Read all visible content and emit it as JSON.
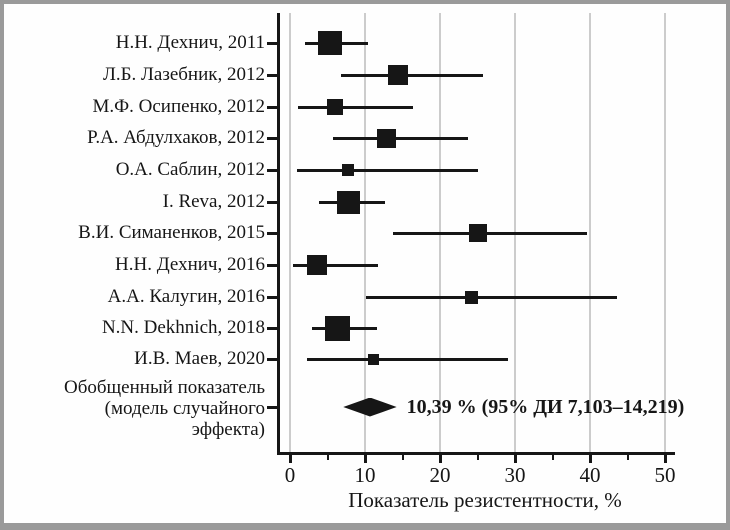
{
  "chart_data": {
    "type": "forest",
    "title": "",
    "xlabel": "Показатель резистентности, %",
    "xlim": [
      0,
      50
    ],
    "x_major_ticks": [
      0,
      10,
      20,
      30,
      40,
      50
    ],
    "x_minor_ticks": [
      5,
      15,
      25,
      35,
      45
    ],
    "grid": "vertical-at-major-ticks",
    "legend": "none",
    "studies": [
      {
        "label": "Н.Н. Дехнич, 2011",
        "estimate": 5.3,
        "ci_low": 2.0,
        "ci_high": 10.4,
        "marker_size": 24
      },
      {
        "label": "Л.Б. Лазебник, 2012",
        "estimate": 14.4,
        "ci_low": 6.8,
        "ci_high": 25.7,
        "marker_size": 20
      },
      {
        "label": "М.Ф. Осипенко, 2012",
        "estimate": 6.0,
        "ci_low": 1.1,
        "ci_high": 16.4,
        "marker_size": 16
      },
      {
        "label": "Р.А. Абдулхаков, 2012",
        "estimate": 12.9,
        "ci_low": 5.7,
        "ci_high": 23.7,
        "marker_size": 19
      },
      {
        "label": "О.А. Саблин, 2012",
        "estimate": 7.7,
        "ci_low": 0.9,
        "ci_high": 25.1,
        "marker_size": 12
      },
      {
        "label": "I. Reva, 2012",
        "estimate": 7.8,
        "ci_low": 3.9,
        "ci_high": 12.7,
        "marker_size": 23
      },
      {
        "label": "В.И. Симаненков, 2015",
        "estimate": 25.0,
        "ci_low": 13.7,
        "ci_high": 39.6,
        "marker_size": 18
      },
      {
        "label": "Н.Н. Дехнич, 2016",
        "estimate": 3.6,
        "ci_low": 0.4,
        "ci_high": 11.7,
        "marker_size": 20
      },
      {
        "label": "А.А. Калугин, 2016",
        "estimate": 24.2,
        "ci_low": 10.1,
        "ci_high": 43.6,
        "marker_size": 13
      },
      {
        "label": "N.N. Dekhnich, 2018",
        "estimate": 6.3,
        "ci_low": 2.9,
        "ci_high": 11.6,
        "marker_size": 25
      },
      {
        "label": "И.В. Маев, 2020",
        "estimate": 11.1,
        "ci_low": 2.3,
        "ci_high": 29.1,
        "marker_size": 11
      }
    ],
    "summary": {
      "label_lines": [
        "Обобщенный показатель",
        "(модель случайного",
        "эффекта)"
      ],
      "estimate": 10.39,
      "ci_low": 7.103,
      "ci_high": 14.219,
      "annotation": "10,39 % (95% ДИ 7,103–14,219)"
    },
    "colors": {
      "ink": "#161616",
      "grid": "#cccccc",
      "frame": "#9a9a9a",
      "background": "#fefefe"
    }
  }
}
